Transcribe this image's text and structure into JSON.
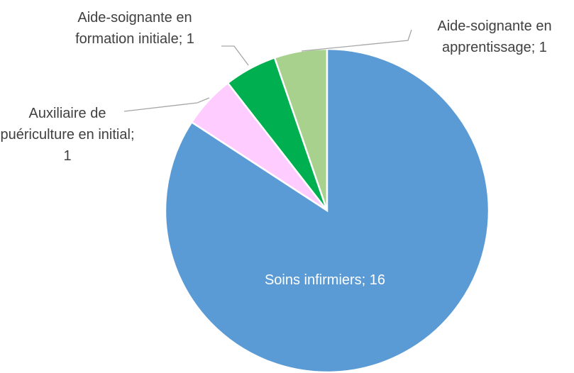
{
  "chart_data": {
    "type": "pie",
    "values": [
      16,
      1,
      1,
      1
    ],
    "value_labels": [
      "Soins infirmiers; 16",
      "Auxiliaire de puériculture en initial; 1",
      "Aide-soignante en formation initiale; 1",
      "Aide-soignante en apprentissage; 1"
    ],
    "colors": [
      "#5b9bd5",
      "#ffccff",
      "#00b050",
      "#a9d18e"
    ],
    "start_angle": 0,
    "direction": "clockwise"
  }
}
